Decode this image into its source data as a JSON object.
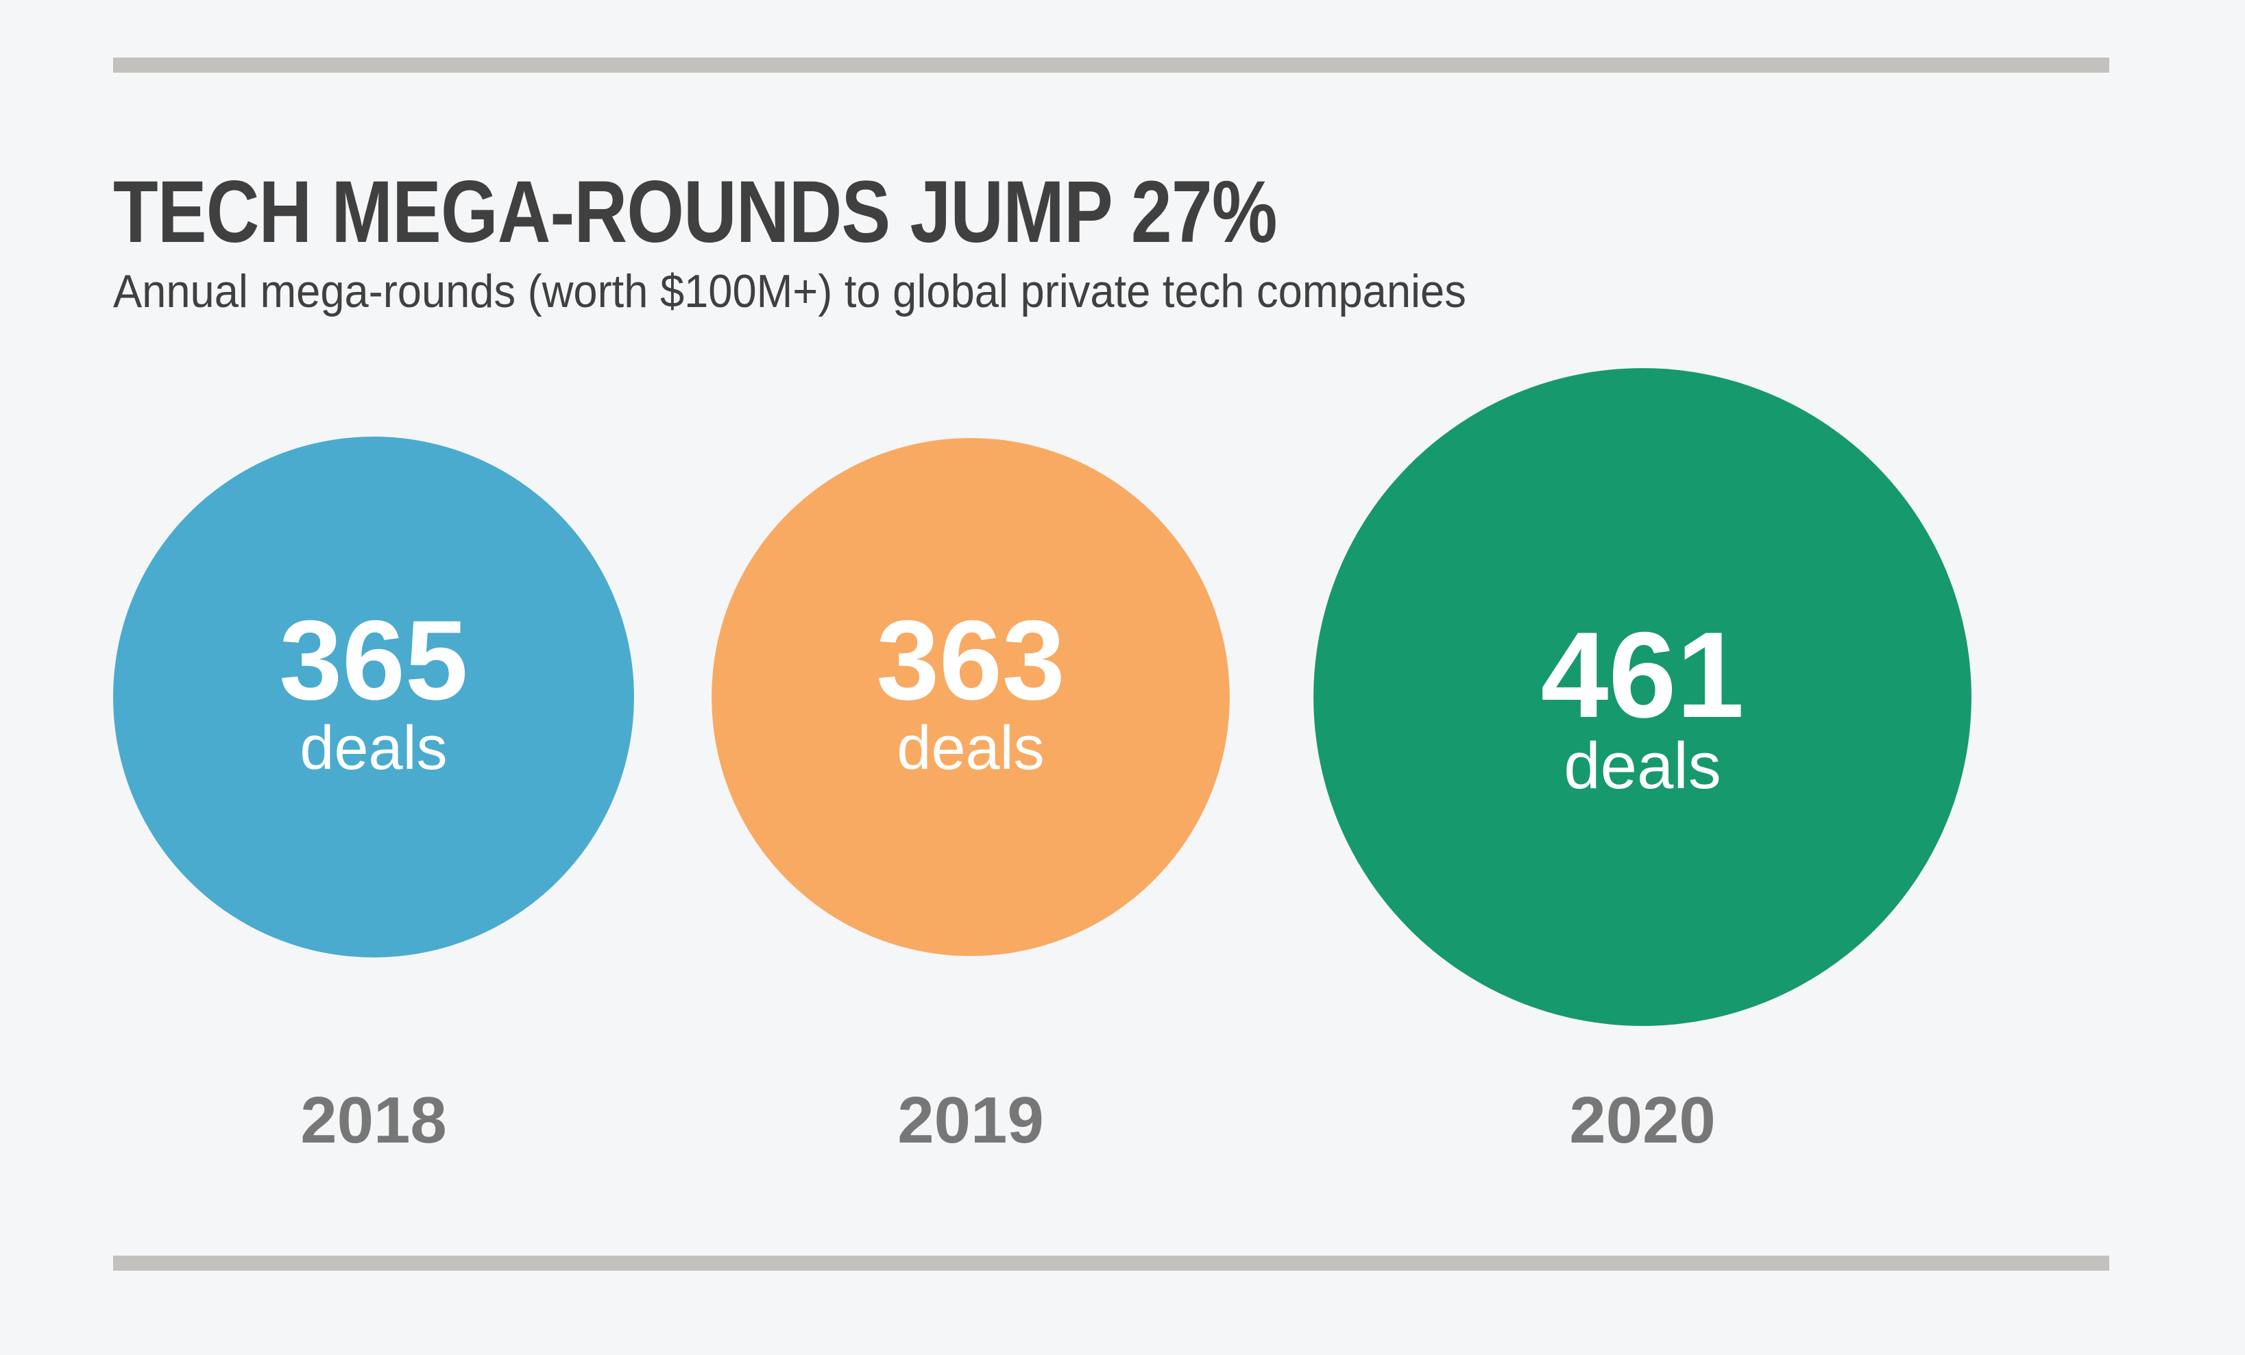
{
  "title": "TECH MEGA-ROUNDS JUMP 27%",
  "subtitle": "Annual mega-rounds (worth $100M+) to global private tech companies",
  "chart_data": {
    "type": "bubble",
    "title": "TECH MEGA-ROUNDS JUMP 27%",
    "subtitle": "Annual mega-rounds (worth $100M+) to global private tech companies",
    "categories": [
      "2018",
      "2019",
      "2020"
    ],
    "values": [
      365,
      363,
      461
    ],
    "unit_label": "deals",
    "colors": [
      "#4aabcf",
      "#f8aa62",
      "#16996d"
    ],
    "text_color": "#404040",
    "year_color": "#777777",
    "rule_color": "#c3c1bd",
    "background": "#f5f6f8"
  }
}
